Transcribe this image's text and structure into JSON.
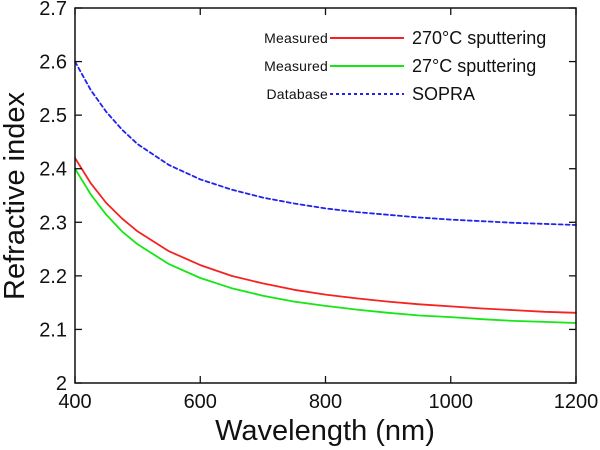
{
  "background_color": "#ffffff",
  "axis_color": "#111111",
  "text_color": "#111111",
  "chart_data": {
    "type": "line",
    "title": "",
    "xlabel": "Wavelength (nm)",
    "ylabel": "Refractive index",
    "xlim": [
      400,
      1200
    ],
    "ylim": [
      2.0,
      2.7
    ],
    "grid": false,
    "legend_position": "top-center-inside",
    "xticks": [
      "400",
      "600",
      "800",
      "1000",
      "1200"
    ],
    "xtick_values": [
      400,
      600,
      800,
      1000,
      1200
    ],
    "yticks": [
      "2",
      "2.1",
      "2.2",
      "2.3",
      "2.4",
      "2.5",
      "2.6",
      "2.7"
    ],
    "ytick_values": [
      2.0,
      2.1,
      2.2,
      2.3,
      2.4,
      2.5,
      2.6,
      2.7
    ],
    "x": [
      400,
      425,
      450,
      475,
      500,
      550,
      600,
      650,
      700,
      750,
      800,
      850,
      900,
      950,
      1000,
      1050,
      1100,
      1150,
      1200
    ],
    "series": [
      {
        "name": "270C sputtering",
        "legend_prefix": "Measured",
        "label": "270°C sputtering",
        "color": "#f62222",
        "style": "solid",
        "values": [
          2.42,
          2.373,
          2.336,
          2.307,
          2.283,
          2.246,
          2.22,
          2.2,
          2.186,
          2.174,
          2.165,
          2.158,
          2.152,
          2.147,
          2.143,
          2.139,
          2.136,
          2.133,
          2.131
        ]
      },
      {
        "name": "27C sputtering",
        "legend_prefix": "Measured",
        "label": "27°C sputtering",
        "color": "#15e715",
        "style": "solid",
        "values": [
          2.4,
          2.352,
          2.314,
          2.283,
          2.259,
          2.222,
          2.196,
          2.177,
          2.163,
          2.152,
          2.144,
          2.137,
          2.131,
          2.126,
          2.123,
          2.119,
          2.116,
          2.114,
          2.112
        ]
      },
      {
        "name": "SOPRA",
        "legend_prefix": "Database",
        "label": "SOPRA",
        "color": "#2222ee",
        "style": "dashed",
        "values": [
          2.6,
          2.547,
          2.506,
          2.473,
          2.446,
          2.407,
          2.38,
          2.361,
          2.346,
          2.335,
          2.326,
          2.319,
          2.314,
          2.309,
          2.305,
          2.302,
          2.299,
          2.297,
          2.295
        ]
      }
    ]
  }
}
